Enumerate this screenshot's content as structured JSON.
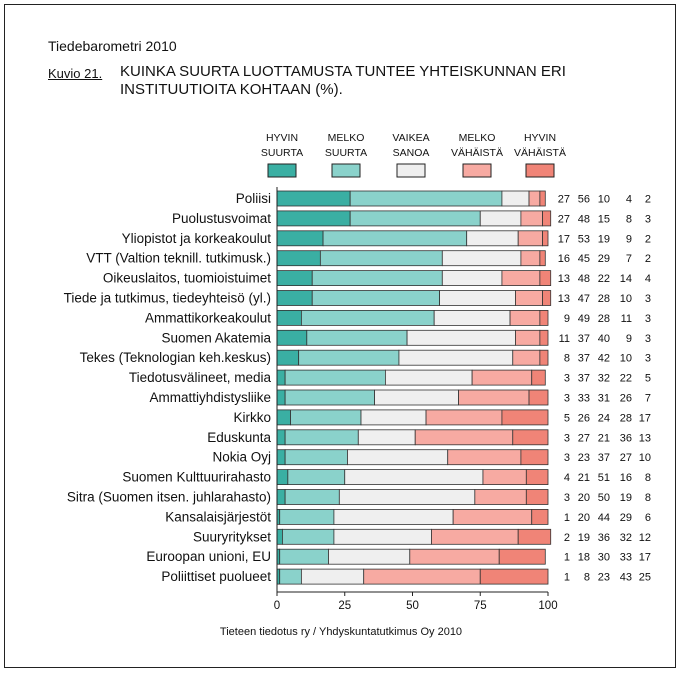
{
  "header": {
    "publication": "Tiedebarometri 2010",
    "figure_label": "Kuvio 21.",
    "title_line1": "KUINKA SUURTA LUOTTAMUSTA TUNTEE YHTEISKUNNAN ERI",
    "title_line2": "INSTITUUTIOITA KOHTAAN (%)."
  },
  "source": "Tieteen tiedotus ry / Yhdyskuntatutkimus Oy 2010",
  "colors": {
    "hyvin_suurta": "#3aafa3",
    "melko_suurta": "#8ad2cb",
    "vaikea_sanoa": "#efefef",
    "melko_vahaista": "#f7aaa2",
    "hyvin_vahaista": "#f08477"
  },
  "chart_data": {
    "type": "bar",
    "orientation": "horizontal",
    "stacked": true,
    "xlim": [
      0,
      100
    ],
    "xticks": [
      "0",
      "25",
      "50",
      "75",
      "100"
    ],
    "categories": [
      "Poliisi",
      "Puolustusvoimat",
      "Yliopistot ja korkeakoulut",
      "VTT (Valtion teknill. tutkimusk.)",
      "Oikeuslaitos, tuomioistuimet",
      "Tiede ja tutkimus, tiedeyhteisö (yl.)",
      "Ammattikorkeakoulut",
      "Suomen Akatemia",
      "Tekes (Teknologian keh.keskus)",
      "Tiedotusvälineet, media",
      "Ammattiyhdistysliike",
      "Kirkko",
      "Eduskunta",
      "Nokia Oyj",
      "Suomen Kulttuurirahasto",
      "Sitra (Suomen itsen. juhlarahasto)",
      "Kansalaisjärjestöt",
      "Suuryritykset",
      "Euroopan unioni, EU",
      "Poliittiset puolueet"
    ],
    "series": [
      {
        "name": "HYVIN SUURTA",
        "label_line1": "HYVIN",
        "label_line2": "SUURTA",
        "values": [
          27,
          27,
          17,
          16,
          13,
          13,
          9,
          11,
          8,
          3,
          3,
          5,
          3,
          3,
          4,
          3,
          1,
          2,
          1,
          1
        ]
      },
      {
        "name": "MELKO SUURTA",
        "label_line1": "MELKO",
        "label_line2": "SUURTA",
        "values": [
          56,
          48,
          53,
          45,
          48,
          47,
          49,
          37,
          37,
          37,
          33,
          26,
          27,
          23,
          21,
          20,
          20,
          19,
          18,
          8
        ]
      },
      {
        "name": "VAIKEA SANOA",
        "label_line1": "VAIKEA",
        "label_line2": "SANOA",
        "values": [
          10,
          15,
          19,
          29,
          22,
          28,
          28,
          40,
          42,
          32,
          31,
          24,
          21,
          37,
          51,
          50,
          44,
          36,
          30,
          23
        ]
      },
      {
        "name": "MELKO VÄHÄISTÄ",
        "label_line1": "MELKO",
        "label_line2": "VÄHÄISTÄ",
        "values": [
          4,
          8,
          9,
          7,
          14,
          10,
          11,
          9,
          10,
          22,
          26,
          28,
          36,
          27,
          16,
          19,
          29,
          32,
          33,
          43
        ]
      },
      {
        "name": "HYVIN VÄHÄISTÄ",
        "label_line1": "HYVIN",
        "label_line2": "VÄHÄISTÄ",
        "values": [
          2,
          3,
          2,
          2,
          4,
          3,
          3,
          3,
          3,
          5,
          7,
          17,
          13,
          10,
          8,
          8,
          6,
          12,
          17,
          25
        ]
      }
    ]
  }
}
